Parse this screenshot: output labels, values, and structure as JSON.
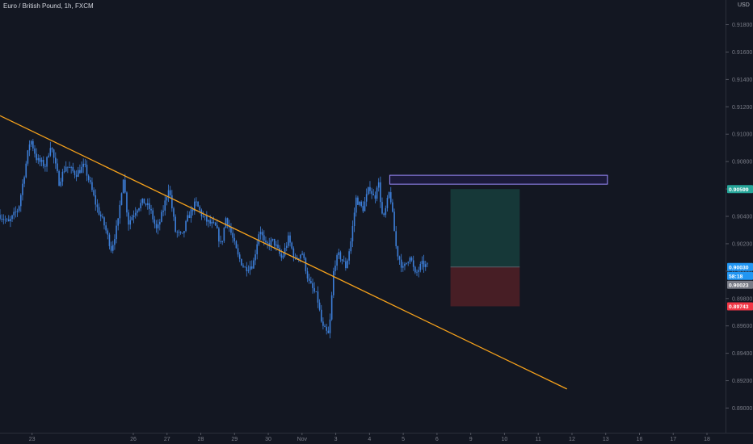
{
  "chart_data": {
    "type": "candlestick",
    "title_parts": [
      "Euro / British Pound",
      "1h",
      "FXCM"
    ],
    "currency": "USD",
    "y_ticks": [
      "0.91800",
      "0.91600",
      "0.91400",
      "0.91200",
      "0.91000",
      "0.90800",
      "0.90600",
      "0.90400",
      "0.90200",
      "0.90000",
      "0.89800",
      "0.89600",
      "0.89400",
      "0.89200",
      "0.89000"
    ],
    "x_ticks": [
      {
        "label": "23",
        "x": 23
      },
      {
        "label": "26",
        "x": 26
      },
      {
        "label": "27",
        "x": 27
      },
      {
        "label": "28",
        "x": 28
      },
      {
        "label": "29",
        "x": 29
      },
      {
        "label": "30",
        "x": 30
      },
      {
        "label": "Nov",
        "x": 31
      },
      {
        "label": "3",
        "x": 32
      },
      {
        "label": "4",
        "x": 33
      },
      {
        "label": "5",
        "x": 34
      },
      {
        "label": "6",
        "x": 35
      },
      {
        "label": "9",
        "x": 36
      },
      {
        "label": "10",
        "x": 37
      },
      {
        "label": "11",
        "x": 38
      },
      {
        "label": "12",
        "x": 39
      },
      {
        "label": "13",
        "x": 40
      },
      {
        "label": "16",
        "x": 41
      },
      {
        "label": "17",
        "x": 42
      },
      {
        "label": "18",
        "x": 43
      }
    ],
    "ylim": [
      0.8882,
      0.9198
    ],
    "xlim": [
      22.05,
      43.55
    ],
    "price_labels": {
      "target": "0.90599",
      "last": "0.90030",
      "countdown": "58:18",
      "bid": "0.90023",
      "stop": "0.89743"
    },
    "price_levels": {
      "target": 0.90599,
      "last": 0.9003,
      "stop": 0.89743
    },
    "colors": {
      "background": "#131722",
      "candles": "#3d7fd9",
      "trendline": "#f7a21b",
      "target": "#26a69a",
      "last": "#2196f3",
      "bid": "#787b86",
      "stop": "#f23645",
      "resistance": "#9c8cff",
      "profit_zone": "#163a3a",
      "loss_zone": "#4a1f26"
    },
    "trendline": {
      "x1": 22.05,
      "y1": 0.91135,
      "x2": 38.85,
      "y2": 0.89139
    },
    "resistance_zone": {
      "x1": 33.6,
      "x2": 40.05,
      "y_top": 0.907,
      "y_bottom": 0.90635
    },
    "position": {
      "x1": 35.4,
      "x2": 37.45,
      "target": 0.90599,
      "entry": 0.9003,
      "stop": 0.89743
    },
    "price_path": [
      [
        22.05,
        0.9041
      ],
      [
        22.3,
        0.9035
      ],
      [
        22.6,
        0.9046
      ],
      [
        22.75,
        0.9068
      ],
      [
        22.95,
        0.9097
      ],
      [
        23.15,
        0.9081
      ],
      [
        23.4,
        0.9077
      ],
      [
        23.55,
        0.9093
      ],
      [
        23.8,
        0.9065
      ],
      [
        24.0,
        0.9077
      ],
      [
        24.3,
        0.9071
      ],
      [
        24.55,
        0.9077
      ],
      [
        24.75,
        0.9061
      ],
      [
        24.9,
        0.9048
      ],
      [
        25.15,
        0.9033
      ],
      [
        25.35,
        0.9016
      ],
      [
        25.55,
        0.9036
      ],
      [
        25.7,
        0.907
      ],
      [
        25.85,
        0.9035
      ],
      [
        26.1,
        0.9046
      ],
      [
        26.3,
        0.9051
      ],
      [
        26.5,
        0.9045
      ],
      [
        26.7,
        0.9029
      ],
      [
        26.9,
        0.9046
      ],
      [
        27.05,
        0.9062
      ],
      [
        27.25,
        0.9029
      ],
      [
        27.45,
        0.9025
      ],
      [
        27.6,
        0.9038
      ],
      [
        27.85,
        0.905
      ],
      [
        28.05,
        0.904
      ],
      [
        28.2,
        0.9036
      ],
      [
        28.45,
        0.9032
      ],
      [
        28.6,
        0.9018
      ],
      [
        28.75,
        0.904
      ],
      [
        29.1,
        0.9011
      ],
      [
        29.3,
        0.9002
      ],
      [
        29.55,
        0.9005
      ],
      [
        29.75,
        0.9032
      ],
      [
        29.9,
        0.9018
      ],
      [
        30.15,
        0.9022
      ],
      [
        30.4,
        0.9009
      ],
      [
        30.6,
        0.9024
      ],
      [
        30.8,
        0.9008
      ],
      [
        31.0,
        0.9014
      ],
      [
        31.2,
        0.8992
      ],
      [
        31.45,
        0.8981
      ],
      [
        31.6,
        0.8959
      ],
      [
        31.8,
        0.8953
      ],
      [
        31.95,
        0.9005
      ],
      [
        32.1,
        0.9012
      ],
      [
        32.3,
        0.9003
      ],
      [
        32.45,
        0.9022
      ],
      [
        32.6,
        0.9053
      ],
      [
        32.8,
        0.9045
      ],
      [
        33.0,
        0.9062
      ],
      [
        33.15,
        0.9052
      ],
      [
        33.25,
        0.9068
      ],
      [
        33.4,
        0.9036
      ],
      [
        33.6,
        0.9059
      ],
      [
        33.8,
        0.9015
      ],
      [
        34.0,
        0.9001
      ],
      [
        34.2,
        0.9012
      ],
      [
        34.35,
        0.8997
      ],
      [
        34.55,
        0.9005
      ],
      [
        34.75,
        0.9003
      ]
    ]
  }
}
